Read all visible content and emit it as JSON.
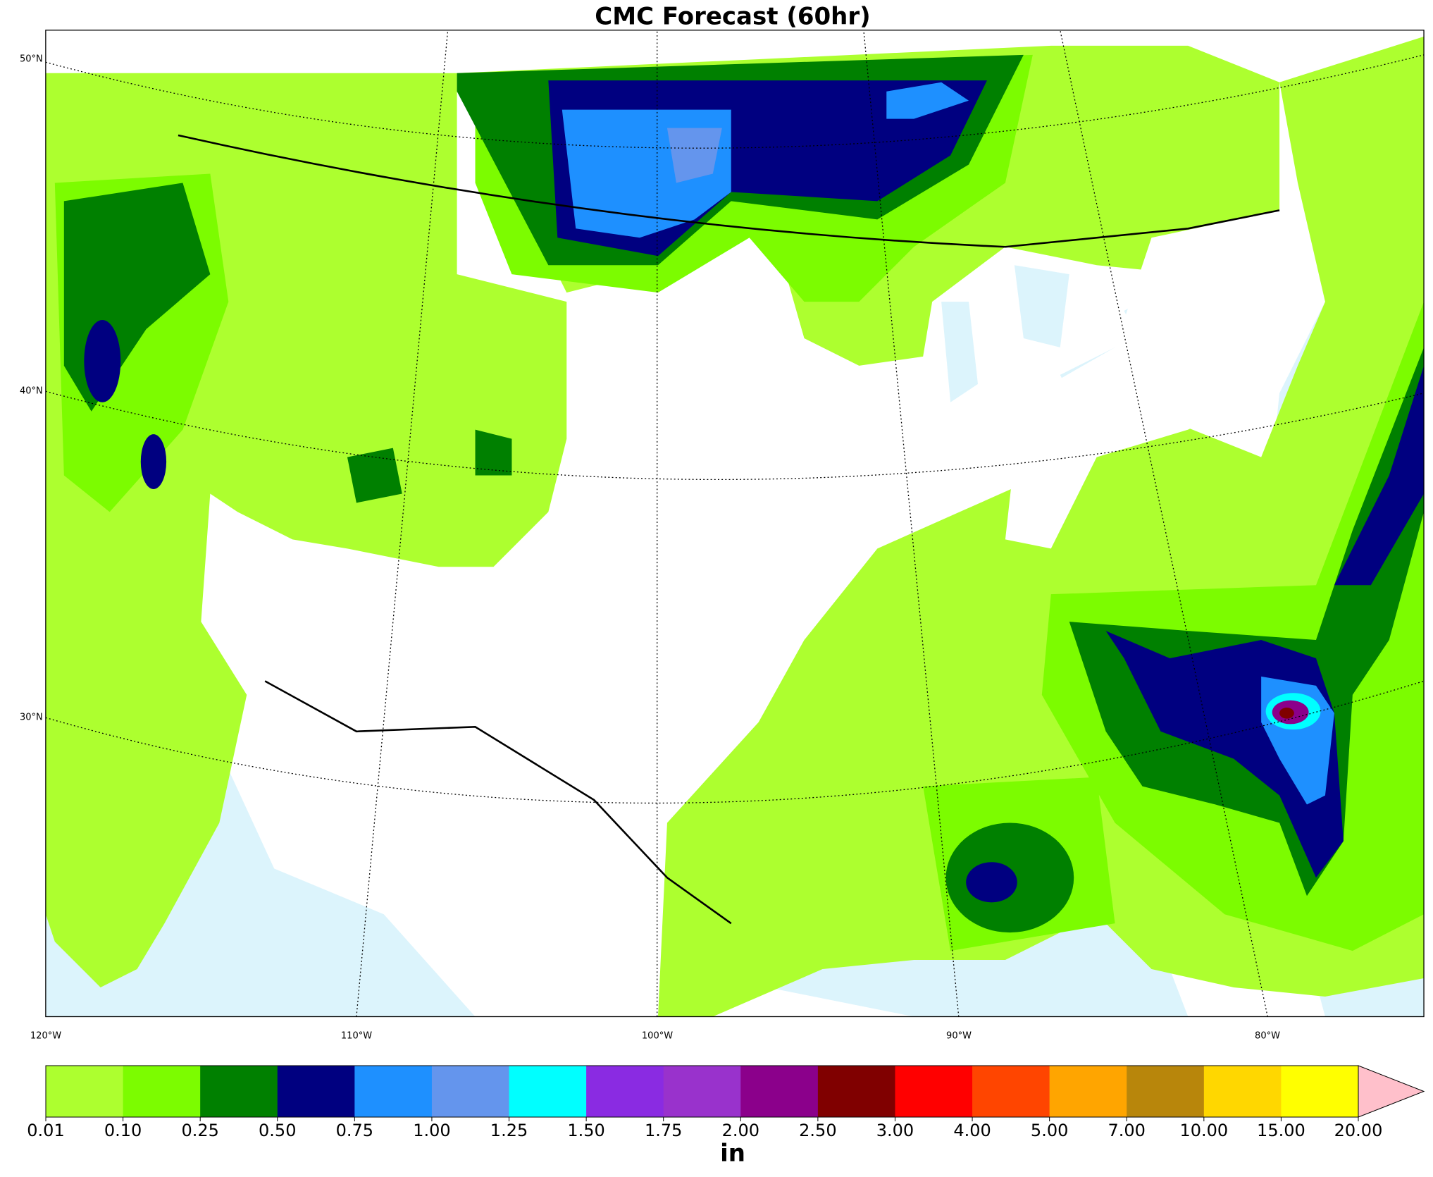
{
  "title": "CMC Forecast (60hr)",
  "map": {
    "lat_labels": [
      "50°N",
      "40°N",
      "30°N"
    ],
    "lon_labels": [
      "120°W",
      "110°W",
      "100°W",
      "90°W",
      "80°W"
    ]
  },
  "colorbar": {
    "label": "in",
    "ticks": [
      {
        "value": 0.01,
        "label": "0.01"
      },
      {
        "value": 0.1,
        "label": "0.10"
      },
      {
        "value": 0.25,
        "label": "0.25"
      },
      {
        "value": 0.5,
        "label": "0.50"
      },
      {
        "value": 0.75,
        "label": "0.75"
      },
      {
        "value": 1,
        "label": "1.00"
      },
      {
        "value": 1.25,
        "label": "1.25"
      },
      {
        "value": 1.5,
        "label": "1.50"
      },
      {
        "value": 1.75,
        "label": "1.75"
      },
      {
        "value": 2,
        "label": "2.00"
      },
      {
        "value": 2.5,
        "label": "2.50"
      },
      {
        "value": 3,
        "label": "3.00"
      },
      {
        "value": 4,
        "label": "4.00"
      },
      {
        "value": 5,
        "label": "5.00"
      },
      {
        "value": 7,
        "label": "7.00"
      },
      {
        "value": 10,
        "label": "10.00"
      },
      {
        "value": 15,
        "label": "15.00"
      },
      {
        "value": 20,
        "label": "20.00"
      }
    ],
    "colors": [
      "#adff2f",
      "#7cfc00",
      "#008000",
      "#000080",
      "#1e90ff",
      "#6495ed",
      "#00ffff",
      "#8a2be2",
      "#9932cc",
      "#8b008b",
      "#800000",
      "#ff0000",
      "#ff4500",
      "#ffa500",
      "#b8860b",
      "#ffd700",
      "#ffff00"
    ],
    "extend_color": "#ffc0cb"
  }
}
